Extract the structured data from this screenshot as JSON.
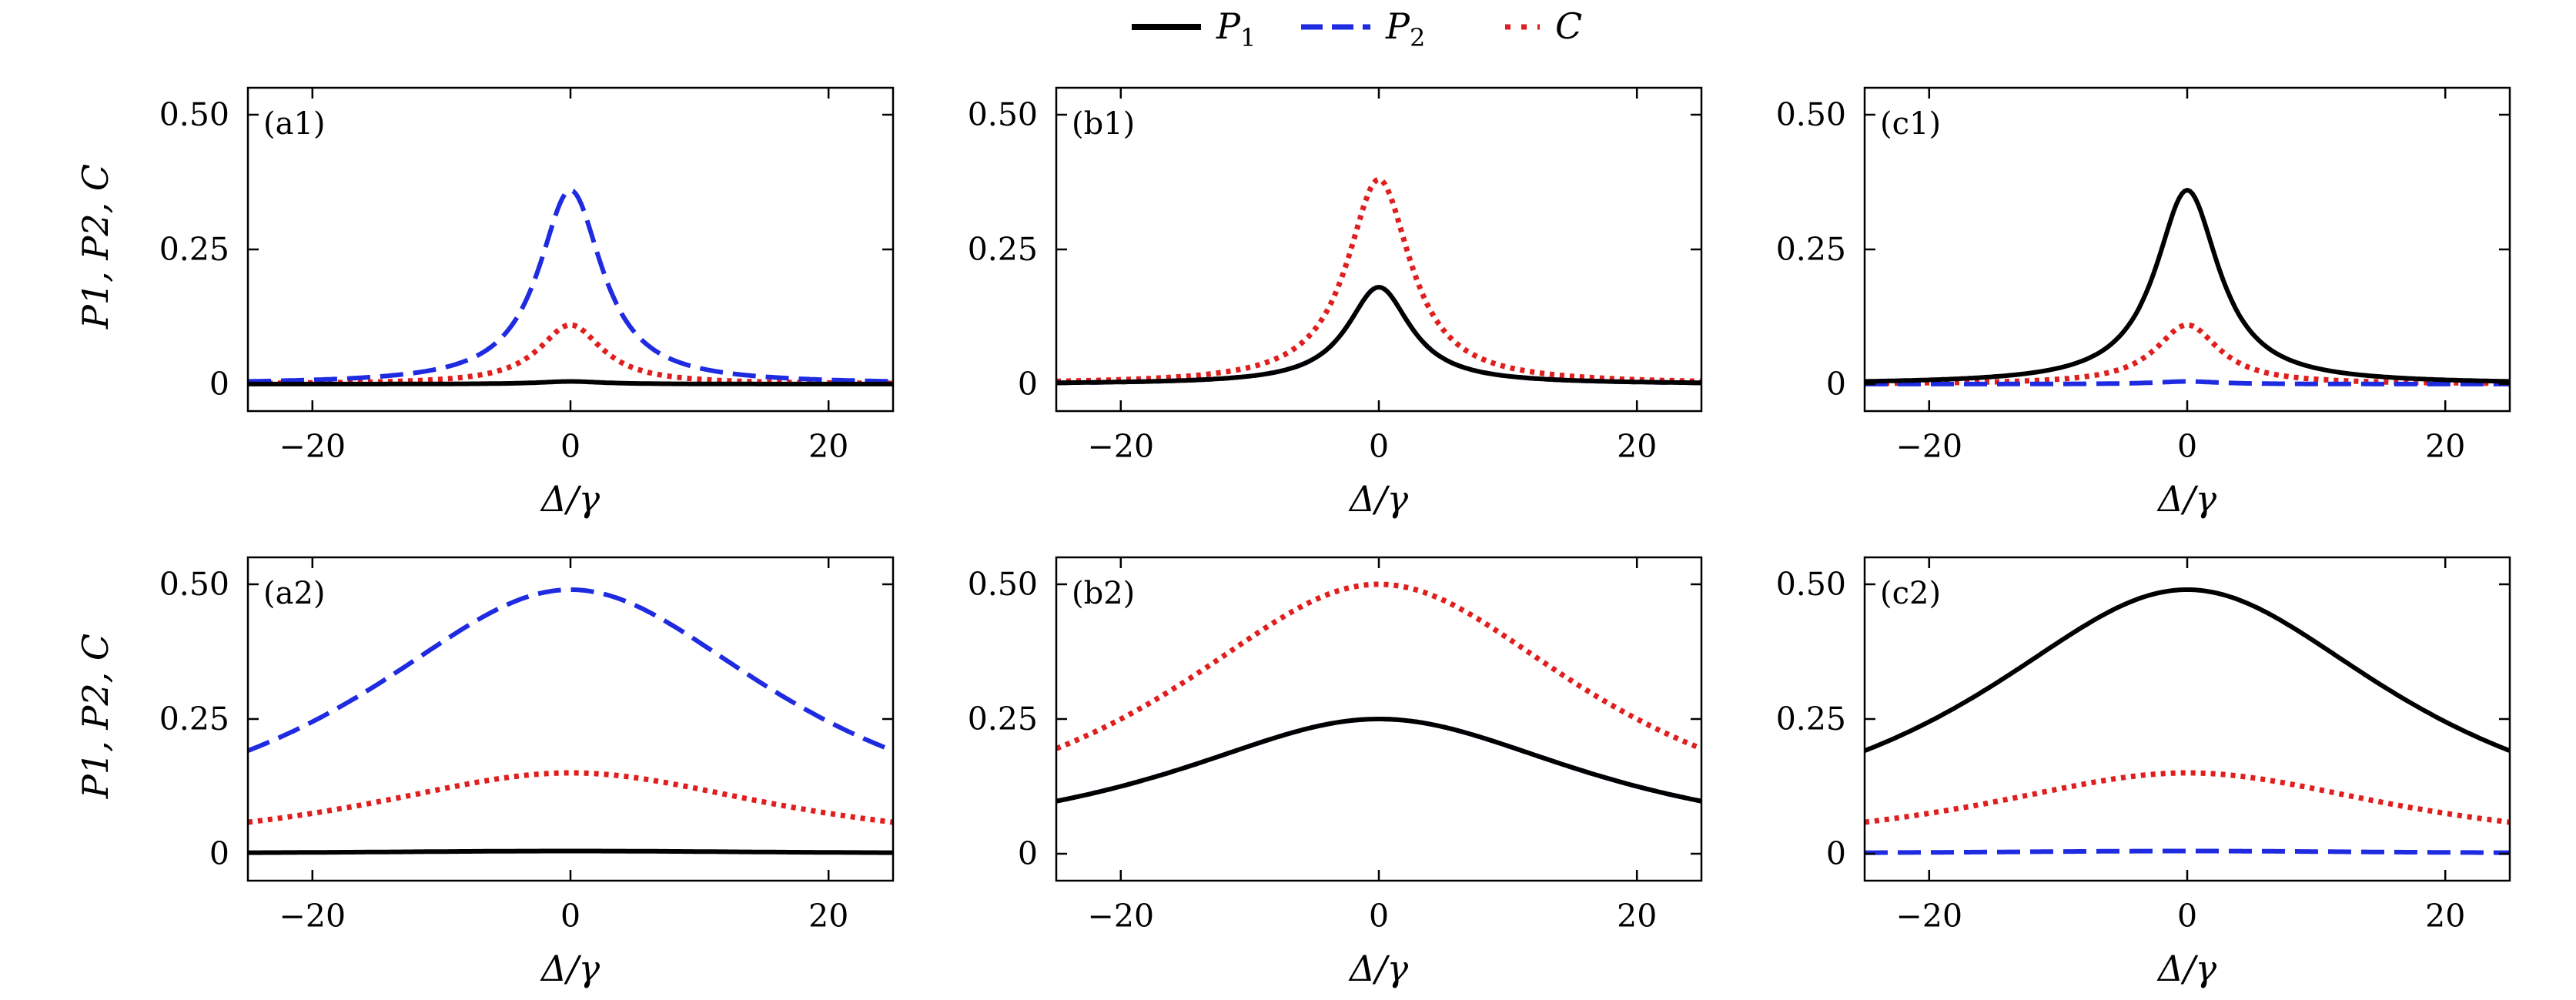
{
  "legend": [
    {
      "key": "P1",
      "label": "P",
      "sub": "1",
      "style": "solid",
      "color": "#000000"
    },
    {
      "key": "P2",
      "label": "P",
      "sub": "2",
      "style": "dashed",
      "color": "#1f2be0"
    },
    {
      "key": "C",
      "label": "C",
      "sub": "",
      "style": "dotted",
      "color": "#e01e1e"
    }
  ],
  "row_ylabel": "P1, P2, C",
  "chart_data": [
    {
      "type": "line",
      "panel": "(a1)",
      "xlabel": "Δ/γ",
      "xlim": [
        -25,
        25
      ],
      "ylim": [
        -0.05,
        0.55
      ],
      "xticks": [
        -20,
        0,
        20
      ],
      "xtick_labels": [
        "−20",
        "0",
        "20"
      ],
      "yticks": [
        0,
        0.25,
        0.5
      ],
      "ytick_labels": [
        "0",
        "0.25",
        "0.50"
      ],
      "series": [
        {
          "name": "P1",
          "shape": "lorentz",
          "peak": 0.005,
          "width": 3
        },
        {
          "name": "P2",
          "shape": "lorentz",
          "peak": 0.36,
          "width": 3
        },
        {
          "name": "C",
          "shape": "lorentz",
          "peak": 0.11,
          "width": 3
        }
      ]
    },
    {
      "type": "line",
      "panel": "(b1)",
      "xlabel": "Δ/γ",
      "xlim": [
        -25,
        25
      ],
      "ylim": [
        -0.05,
        0.55
      ],
      "xticks": [
        -20,
        0,
        20
      ],
      "xtick_labels": [
        "−20",
        "0",
        "20"
      ],
      "yticks": [
        0,
        0.25,
        0.5
      ],
      "ytick_labels": [
        "0",
        "0.25",
        "0.50"
      ],
      "series": [
        {
          "name": "P1",
          "shape": "lorentz",
          "peak": 0.18,
          "width": 3
        },
        {
          "name": "P2",
          "shape": "lorentz",
          "peak": 0.18,
          "width": 3
        },
        {
          "name": "C",
          "shape": "lorentz",
          "peak": 0.38,
          "width": 3
        }
      ]
    },
    {
      "type": "line",
      "panel": "(c1)",
      "xlabel": "Δ/γ",
      "xlim": [
        -25,
        25
      ],
      "ylim": [
        -0.05,
        0.55
      ],
      "xticks": [
        -20,
        0,
        20
      ],
      "xtick_labels": [
        "−20",
        "0",
        "20"
      ],
      "yticks": [
        0,
        0.25,
        0.5
      ],
      "ytick_labels": [
        "0",
        "0.25",
        "0.50"
      ],
      "series": [
        {
          "name": "P1",
          "shape": "lorentz",
          "peak": 0.36,
          "width": 3
        },
        {
          "name": "P2",
          "shape": "lorentz",
          "peak": 0.005,
          "width": 3
        },
        {
          "name": "C",
          "shape": "lorentz",
          "peak": 0.11,
          "width": 3
        }
      ]
    },
    {
      "type": "line",
      "panel": "(a2)",
      "xlabel": "Δ/γ",
      "xlim": [
        -25,
        25
      ],
      "ylim": [
        -0.05,
        0.55
      ],
      "xticks": [
        -20,
        0,
        20
      ],
      "xtick_labels": [
        "−20",
        "0",
        "20"
      ],
      "yticks": [
        0,
        0.25,
        0.5
      ],
      "ytick_labels": [
        "0",
        "0.25",
        "0.50"
      ],
      "series": [
        {
          "name": "P1",
          "shape": "lorentz",
          "peak": 0.005,
          "width": 20
        },
        {
          "name": "P2",
          "shape": "lorentz",
          "peak": 0.49,
          "width": 20
        },
        {
          "name": "C",
          "shape": "lorentz",
          "peak": 0.15,
          "width": 20
        }
      ]
    },
    {
      "type": "line",
      "panel": "(b2)",
      "xlabel": "Δ/γ",
      "xlim": [
        -25,
        25
      ],
      "ylim": [
        -0.05,
        0.55
      ],
      "xticks": [
        -20,
        0,
        20
      ],
      "xtick_labels": [
        "−20",
        "0",
        "20"
      ],
      "yticks": [
        0,
        0.25,
        0.5
      ],
      "ytick_labels": [
        "0",
        "0.25",
        "0.50"
      ],
      "series": [
        {
          "name": "P1",
          "shape": "lorentz",
          "peak": 0.25,
          "width": 20
        },
        {
          "name": "P2",
          "shape": "lorentz",
          "peak": 0.25,
          "width": 20
        },
        {
          "name": "C",
          "shape": "lorentz",
          "peak": 0.5,
          "width": 20
        }
      ]
    },
    {
      "type": "line",
      "panel": "(c2)",
      "xlabel": "Δ/γ",
      "xlim": [
        -25,
        25
      ],
      "ylim": [
        -0.05,
        0.55
      ],
      "xticks": [
        -20,
        0,
        20
      ],
      "xtick_labels": [
        "−20",
        "0",
        "20"
      ],
      "yticks": [
        0,
        0.25,
        0.5
      ],
      "ytick_labels": [
        "0",
        "0.25",
        "0.50"
      ],
      "series": [
        {
          "name": "P1",
          "shape": "lorentz",
          "peak": 0.49,
          "width": 20
        },
        {
          "name": "P2",
          "shape": "lorentz",
          "peak": 0.005,
          "width": 20
        },
        {
          "name": "C",
          "shape": "lorentz",
          "peak": 0.15,
          "width": 20
        }
      ]
    }
  ]
}
